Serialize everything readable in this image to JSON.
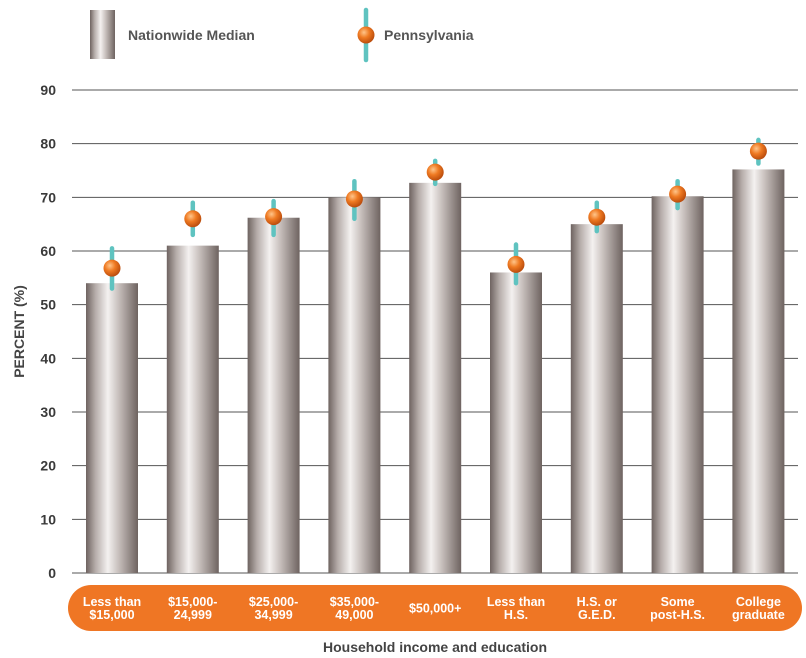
{
  "legend": {
    "nationwide_label": "Nationwide Median",
    "state_label": "Pennsylvania"
  },
  "colors": {
    "bar_dark": "#6e6360",
    "bar_light": "#f4f1f0",
    "marker_orange": "#e8731e",
    "errorbar_teal": "#5fc3c0",
    "category_band": "#ef7624",
    "gridline": "#555555"
  },
  "chart_data": {
    "type": "bar",
    "xlabel": "Household income and education",
    "ylabel": "PERCENT (%)",
    "ylim": [
      0,
      90
    ],
    "yticks": [
      0,
      10,
      20,
      30,
      40,
      50,
      60,
      70,
      80,
      90
    ],
    "grid": true,
    "legend_position": "top-left",
    "categories": [
      [
        "Less than",
        "$15,000"
      ],
      [
        "$15,000-",
        "24,999"
      ],
      [
        "$25,000-",
        "34,999"
      ],
      [
        "$35,000-",
        "49,000"
      ],
      [
        "$50,000+"
      ],
      [
        "Less than",
        "H.S."
      ],
      [
        "H.S. or",
        "G.E.D."
      ],
      [
        "Some",
        "post-H.S."
      ],
      [
        "College",
        "graduate"
      ]
    ],
    "series": [
      {
        "name": "Nationwide Median",
        "kind": "bar",
        "values": [
          54,
          61,
          66.2,
          70,
          72.7,
          56,
          65,
          70.2,
          75.2
        ]
      },
      {
        "name": "Pennsylvania",
        "kind": "point-with-errorbar",
        "values": [
          56.8,
          66,
          66.4,
          69.7,
          74.7,
          57.5,
          66.3,
          70.6,
          78.6
        ],
        "lower": [
          53,
          63,
          63,
          66,
          72.5,
          54,
          63.7,
          68,
          76.3
        ],
        "upper": [
          60.5,
          69,
          69.3,
          73,
          76.8,
          61.2,
          69,
          73,
          80.7
        ]
      }
    ]
  }
}
